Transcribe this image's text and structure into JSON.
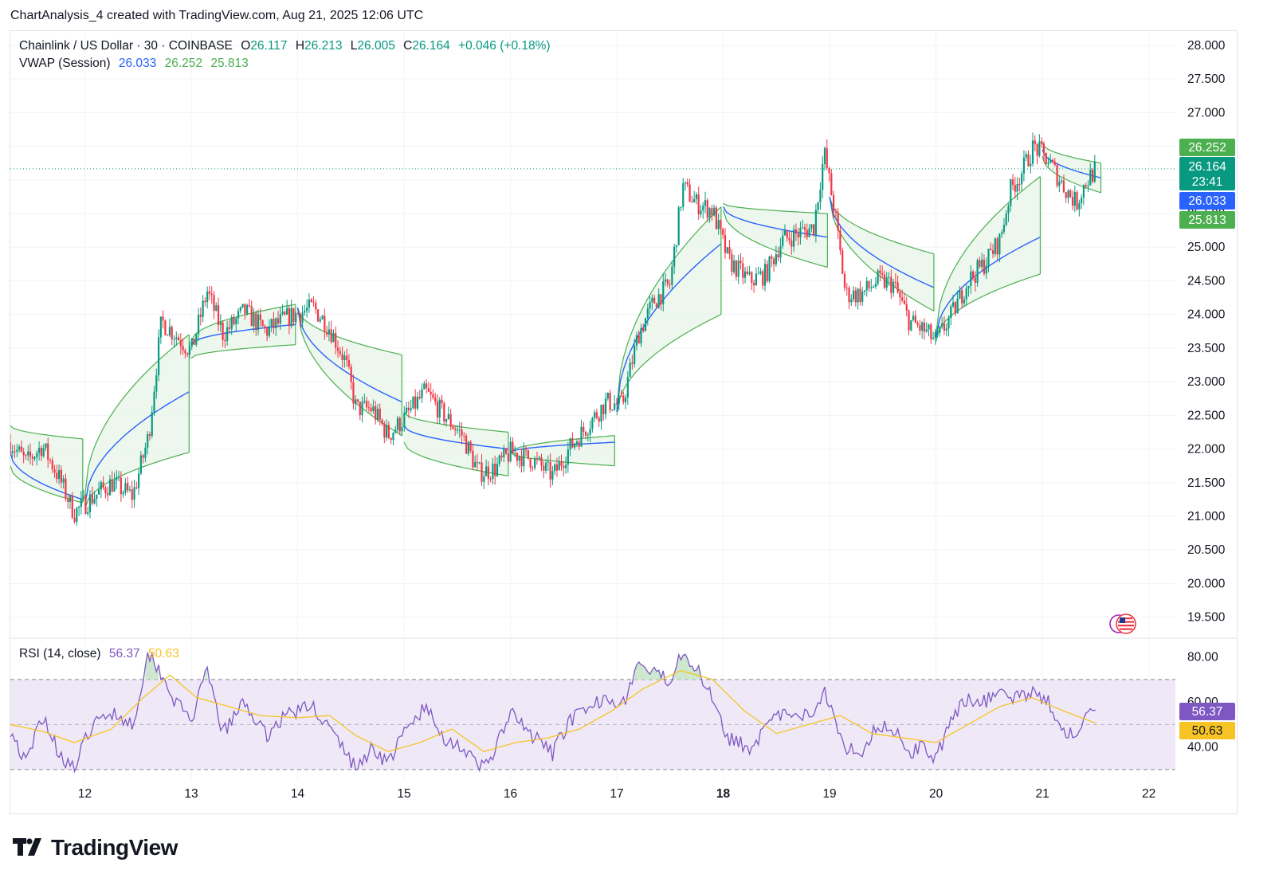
{
  "header": {
    "text": "ChartAnalysis_4 created with TradingView.com, Aug 21, 2025 12:06 UTC"
  },
  "legend": {
    "symbol": "Chainlink / US Dollar · 30 · COINBASE",
    "open_label": "O",
    "open": "26.117",
    "high_label": "H",
    "high": "26.213",
    "low_label": "L",
    "low": "26.005",
    "close_label": "C",
    "close": "26.164",
    "change": "+0.046 (+0.18%)",
    "vwap_label": "VWAP (Session)",
    "vwap": "26.033",
    "vwap_upper": "26.252",
    "vwap_lower": "25.813",
    "rsi_label": "RSI (14, close)",
    "rsi": "56.37",
    "rsi_ma": "50.63"
  },
  "branding": {
    "logo_text": "TradingView"
  },
  "price_badges": {
    "upper": "26.252",
    "last": "26.164",
    "countdown": "23:41",
    "vwap": "26.033",
    "lower": "25.813",
    "rsi": "56.37",
    "rsi_ma": "50.63"
  },
  "colors": {
    "up": "#089981",
    "down": "#f23645",
    "vwap": "#2962ff",
    "band": "#4caf50",
    "band_fill": "#e8f5e9",
    "rsi": "#7e57c2",
    "rsi_ma": "#f7c325",
    "rsi_fill": "#ede7f6",
    "grid": "#f0f3fa"
  },
  "chart_data": [
    {
      "type": "line",
      "subtype": "candlestick",
      "title": "Chainlink / US Dollar · 30 · COINBASE",
      "x_tick_labels": [
        "12",
        "13",
        "14",
        "15",
        "16",
        "17",
        "18",
        "19",
        "20",
        "21",
        "22"
      ],
      "x_ticks": [
        12,
        13,
        14,
        15,
        16,
        17,
        18,
        19,
        20,
        21,
        22
      ],
      "xlim": [
        11.3,
        22.25
      ],
      "ylim": [
        19.2,
        28.2
      ],
      "y_ticks": [
        "19.500",
        "20.000",
        "20.500",
        "21.000",
        "21.500",
        "22.000",
        "22.500",
        "23.000",
        "23.500",
        "24.000",
        "24.500",
        "25.000",
        "25.500",
        "26.000",
        "26.500",
        "27.000",
        "27.500",
        "28.000"
      ],
      "grid": true,
      "last_price_line": 26.164,
      "price_path": [
        [
          11.3,
          22.1
        ],
        [
          11.45,
          21.8
        ],
        [
          11.6,
          22.05
        ],
        [
          11.75,
          21.6
        ],
        [
          11.9,
          21.05
        ],
        [
          12.05,
          21.25
        ],
        [
          12.25,
          21.5
        ],
        [
          12.45,
          21.3
        ],
        [
          12.6,
          22.2
        ],
        [
          12.72,
          23.9
        ],
        [
          12.85,
          23.7
        ],
        [
          13.0,
          23.45
        ],
        [
          13.15,
          24.35
        ],
        [
          13.3,
          23.7
        ],
        [
          13.5,
          24.05
        ],
        [
          13.7,
          23.75
        ],
        [
          13.9,
          23.95
        ],
        [
          14.15,
          24.1
        ],
        [
          14.3,
          23.8
        ],
        [
          14.45,
          23.3
        ],
        [
          14.55,
          22.6
        ],
        [
          14.7,
          22.6
        ],
        [
          14.85,
          22.2
        ],
        [
          15.0,
          22.45
        ],
        [
          15.2,
          22.85
        ],
        [
          15.35,
          22.55
        ],
        [
          15.55,
          22.2
        ],
        [
          15.7,
          21.65
        ],
        [
          15.85,
          21.7
        ],
        [
          16.0,
          21.95
        ],
        [
          16.2,
          21.85
        ],
        [
          16.4,
          21.6
        ],
        [
          16.55,
          22.0
        ],
        [
          16.75,
          22.4
        ],
        [
          16.9,
          22.7
        ],
        [
          17.05,
          22.65
        ],
        [
          17.2,
          23.7
        ],
        [
          17.35,
          24.2
        ],
        [
          17.5,
          24.45
        ],
        [
          17.62,
          25.9
        ],
        [
          17.75,
          25.65
        ],
        [
          17.9,
          25.55
        ],
        [
          18.05,
          24.8
        ],
        [
          18.25,
          24.5
        ],
        [
          18.4,
          24.6
        ],
        [
          18.55,
          25.1
        ],
        [
          18.7,
          25.2
        ],
        [
          18.85,
          25.3
        ],
        [
          18.95,
          26.4
        ],
        [
          19.05,
          25.5
        ],
        [
          19.15,
          24.3
        ],
        [
          19.3,
          24.3
        ],
        [
          19.45,
          24.5
        ],
        [
          19.6,
          24.45
        ],
        [
          19.75,
          23.9
        ],
        [
          19.9,
          23.75
        ],
        [
          20.0,
          23.6
        ],
        [
          20.15,
          24.0
        ],
        [
          20.3,
          24.5
        ],
        [
          20.45,
          24.75
        ],
        [
          20.6,
          25.1
        ],
        [
          20.7,
          25.85
        ],
        [
          20.8,
          26.1
        ],
        [
          20.92,
          26.5
        ],
        [
          21.05,
          26.3
        ],
        [
          21.2,
          25.9
        ],
        [
          21.32,
          25.65
        ],
        [
          21.4,
          25.95
        ],
        [
          21.5,
          26.16
        ]
      ],
      "vwap_sessions": [
        {
          "x": [
            11.3,
            11.98
          ],
          "vwap": [
            21.95,
            21.25
          ],
          "upper": [
            22.35,
            22.15
          ],
          "lower": [
            21.75,
            21.2
          ]
        },
        {
          "x": [
            12.0,
            12.98
          ],
          "vwap": [
            21.15,
            22.85
          ],
          "upper": [
            21.3,
            23.7
          ],
          "lower": [
            21.1,
            21.95
          ]
        },
        {
          "x": [
            13.0,
            13.98
          ],
          "vwap": [
            23.55,
            23.85
          ],
          "upper": [
            23.6,
            24.15
          ],
          "lower": [
            23.35,
            23.55
          ]
        },
        {
          "x": [
            14.0,
            14.98
          ],
          "vwap": [
            24.1,
            22.7
          ],
          "upper": [
            24.1,
            23.4
          ],
          "lower": [
            24.1,
            22.2
          ]
        },
        {
          "x": [
            15.0,
            15.98
          ],
          "vwap": [
            22.35,
            22.0
          ],
          "upper": [
            22.55,
            22.25
          ],
          "lower": [
            22.1,
            21.6
          ]
        },
        {
          "x": [
            16.0,
            16.98
          ],
          "vwap": [
            21.95,
            22.1
          ],
          "upper": [
            21.95,
            22.2
          ],
          "lower": [
            21.95,
            21.75
          ]
        },
        {
          "x": [
            17.0,
            17.98
          ],
          "vwap": [
            22.55,
            25.05
          ],
          "upper": [
            22.6,
            25.6
          ],
          "lower": [
            22.5,
            24.0
          ]
        },
        {
          "x": [
            18.0,
            18.98
          ],
          "vwap": [
            25.6,
            25.15
          ],
          "upper": [
            25.65,
            25.5
          ],
          "lower": [
            25.55,
            24.7
          ]
        },
        {
          "x": [
            19.0,
            19.98
          ],
          "vwap": [
            25.75,
            24.4
          ],
          "upper": [
            25.75,
            24.9
          ],
          "lower": [
            25.75,
            24.05
          ]
        },
        {
          "x": [
            20.0,
            20.98
          ],
          "vwap": [
            23.65,
            25.15
          ],
          "upper": [
            23.7,
            26.05
          ],
          "lower": [
            23.6,
            24.6
          ]
        },
        {
          "x": [
            21.0,
            21.55
          ],
          "vwap": [
            26.45,
            26.03
          ],
          "upper": [
            26.55,
            26.25
          ],
          "lower": [
            26.35,
            25.81
          ]
        }
      ]
    },
    {
      "type": "line",
      "title": "RSI (14, close)",
      "ylim": [
        25,
        88
      ],
      "y_ticks": [
        "40.00",
        "60.00",
        "80.00"
      ],
      "bands": [
        30,
        70
      ],
      "midline": 50,
      "rsi_path": [
        [
          11.3,
          48
        ],
        [
          11.45,
          32
        ],
        [
          11.6,
          55
        ],
        [
          11.75,
          38
        ],
        [
          11.9,
          30
        ],
        [
          12.05,
          48
        ],
        [
          12.25,
          56
        ],
        [
          12.45,
          50
        ],
        [
          12.6,
          82
        ],
        [
          12.72,
          73
        ],
        [
          12.85,
          60
        ],
        [
          13.0,
          52
        ],
        [
          13.15,
          73
        ],
        [
          13.3,
          46
        ],
        [
          13.5,
          60
        ],
        [
          13.7,
          45
        ],
        [
          13.9,
          55
        ],
        [
          14.15,
          58
        ],
        [
          14.3,
          48
        ],
        [
          14.45,
          38
        ],
        [
          14.55,
          30
        ],
        [
          14.7,
          40
        ],
        [
          14.85,
          33
        ],
        [
          15.0,
          46
        ],
        [
          15.2,
          58
        ],
        [
          15.35,
          45
        ],
        [
          15.55,
          40
        ],
        [
          15.7,
          30
        ],
        [
          15.85,
          38
        ],
        [
          16.0,
          55
        ],
        [
          16.2,
          45
        ],
        [
          16.4,
          37
        ],
        [
          16.55,
          52
        ],
        [
          16.75,
          56
        ],
        [
          16.9,
          64
        ],
        [
          17.05,
          58
        ],
        [
          17.2,
          77
        ],
        [
          17.35,
          72
        ],
        [
          17.5,
          70
        ],
        [
          17.62,
          84
        ],
        [
          17.75,
          74
        ],
        [
          17.9,
          63
        ],
        [
          18.05,
          44
        ],
        [
          18.25,
          40
        ],
        [
          18.4,
          48
        ],
        [
          18.55,
          55
        ],
        [
          18.7,
          52
        ],
        [
          18.85,
          56
        ],
        [
          18.95,
          66
        ],
        [
          19.05,
          53
        ],
        [
          19.15,
          40
        ],
        [
          19.3,
          38
        ],
        [
          19.45,
          50
        ],
        [
          19.6,
          48
        ],
        [
          19.75,
          38
        ],
        [
          19.9,
          40
        ],
        [
          20.0,
          35
        ],
        [
          20.15,
          52
        ],
        [
          20.3,
          62
        ],
        [
          20.45,
          60
        ],
        [
          20.6,
          65
        ],
        [
          20.7,
          62
        ],
        [
          20.8,
          62
        ],
        [
          20.92,
          66
        ],
        [
          21.05,
          60
        ],
        [
          21.2,
          48
        ],
        [
          21.32,
          44
        ],
        [
          21.4,
          53
        ],
        [
          21.5,
          56.37
        ]
      ],
      "ma_path": [
        [
          11.3,
          50
        ],
        [
          11.6,
          47
        ],
        [
          11.9,
          42
        ],
        [
          12.25,
          48
        ],
        [
          12.55,
          62
        ],
        [
          12.8,
          72
        ],
        [
          13.05,
          62
        ],
        [
          13.35,
          58
        ],
        [
          13.65,
          54
        ],
        [
          14.0,
          53
        ],
        [
          14.3,
          54
        ],
        [
          14.55,
          45
        ],
        [
          14.85,
          38
        ],
        [
          15.15,
          42
        ],
        [
          15.45,
          48
        ],
        [
          15.75,
          38
        ],
        [
          16.05,
          42
        ],
        [
          16.35,
          44
        ],
        [
          16.65,
          48
        ],
        [
          16.95,
          56
        ],
        [
          17.25,
          66
        ],
        [
          17.6,
          74
        ],
        [
          17.9,
          70
        ],
        [
          18.2,
          56
        ],
        [
          18.5,
          46
        ],
        [
          18.8,
          50
        ],
        [
          19.1,
          54
        ],
        [
          19.4,
          46
        ],
        [
          19.7,
          44
        ],
        [
          20.0,
          42
        ],
        [
          20.3,
          50
        ],
        [
          20.6,
          58
        ],
        [
          20.9,
          62
        ],
        [
          21.2,
          56
        ],
        [
          21.5,
          50.63
        ]
      ]
    }
  ]
}
